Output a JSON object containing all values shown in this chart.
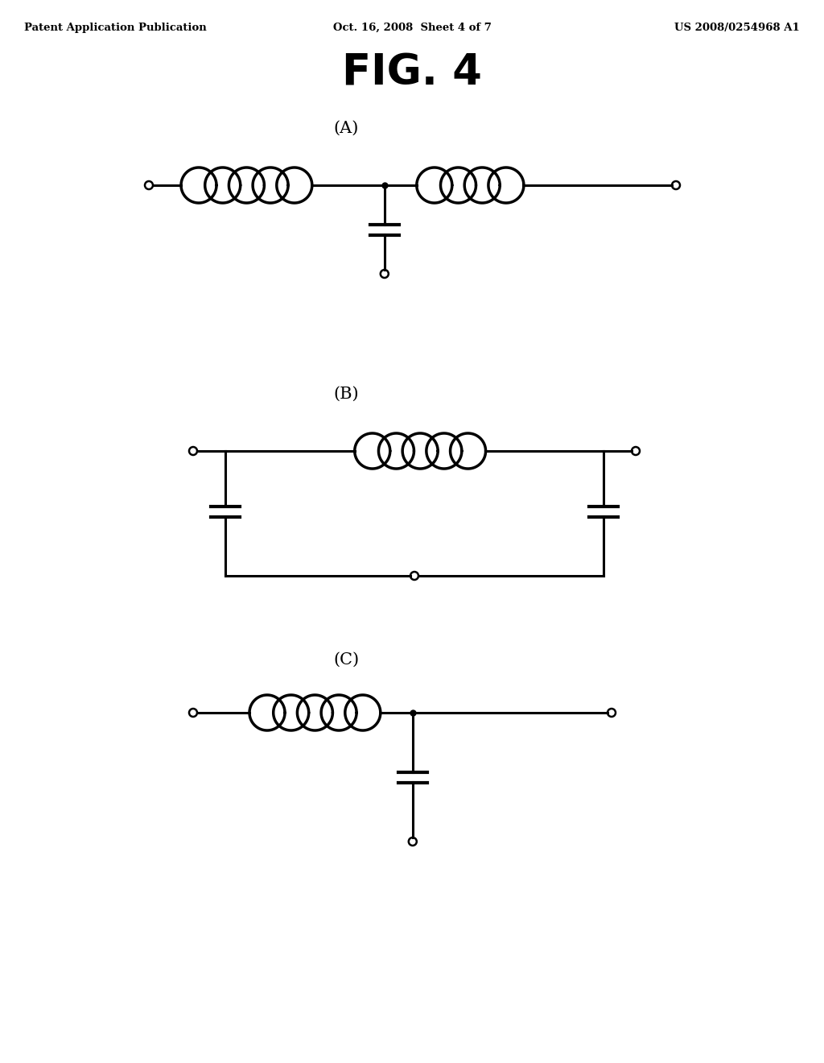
{
  "title": "FIG. 4",
  "header_left": "Patent Application Publication",
  "header_center": "Oct. 16, 2008  Sheet 4 of 7",
  "header_right": "US 2008/0254968 A1",
  "label_A": "(A)",
  "label_B": "(B)",
  "label_C": "(C)",
  "bg_color": "#ffffff",
  "line_color": "#000000",
  "lw": 2.2,
  "coil_lw": 2.5
}
